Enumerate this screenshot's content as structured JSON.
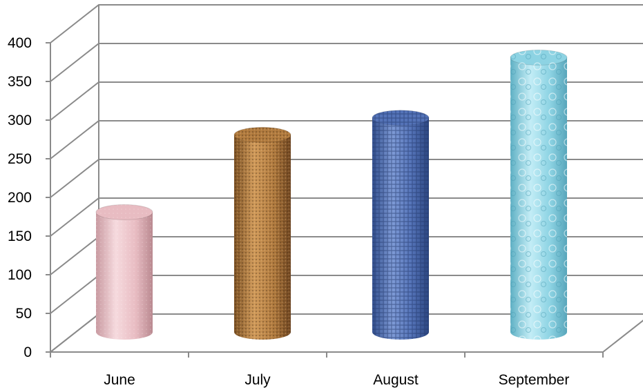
{
  "chart_data": {
    "type": "bar",
    "style": "3d-cylinder",
    "title": "",
    "xlabel": "",
    "ylabel": "",
    "categories": [
      "June",
      "July",
      "August",
      "September"
    ],
    "values": [
      155,
      255,
      277,
      355
    ],
    "ylim": [
      0,
      400
    ],
    "yticks": [
      0,
      50,
      100,
      150,
      200,
      250,
      300,
      350,
      400
    ],
    "grid": true,
    "legend": "none",
    "colors": {
      "June": "#e8bcc2",
      "July": "#b07a3e",
      "August": "#5473b8",
      "September": "#8dd3e3"
    }
  }
}
